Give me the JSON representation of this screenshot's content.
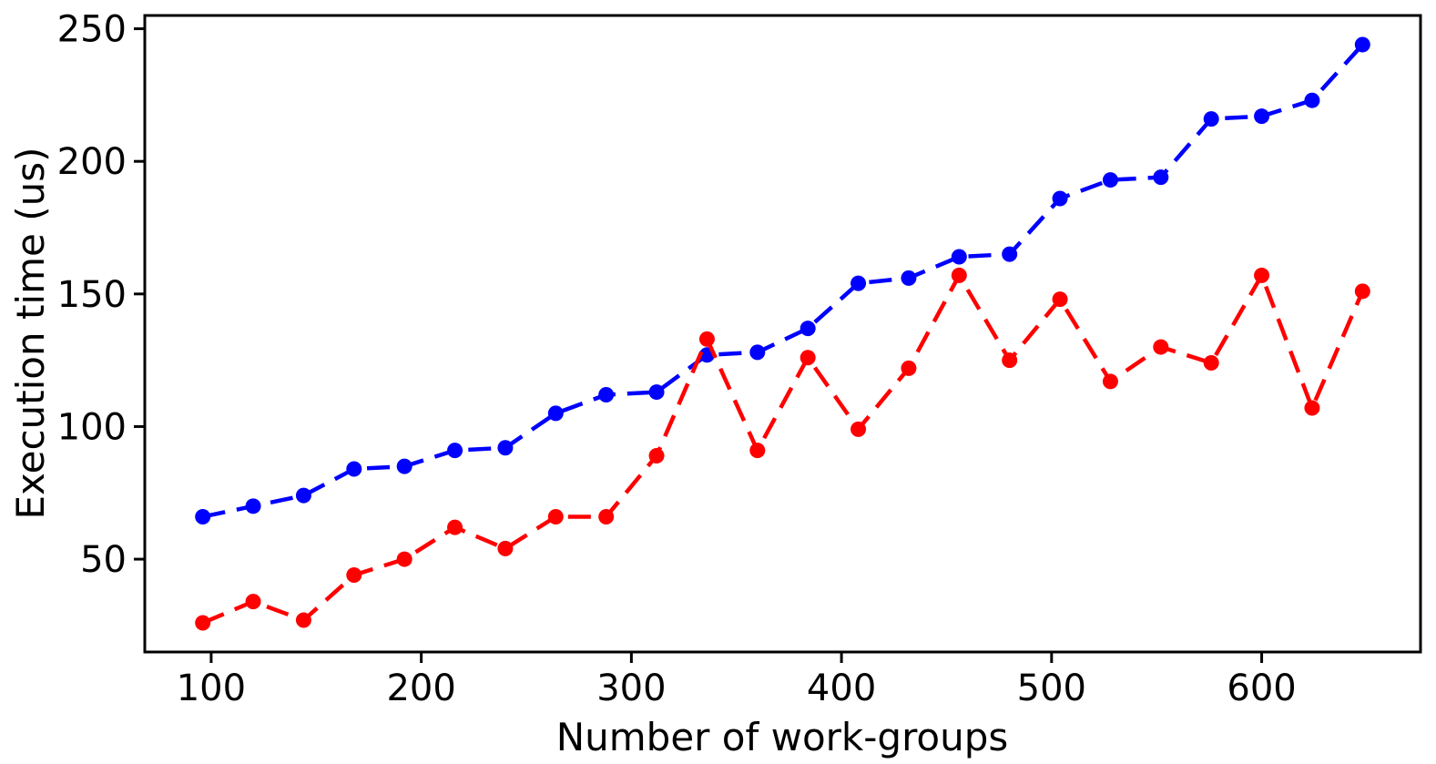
{
  "chart_data": {
    "type": "line",
    "title": "",
    "xlabel": "Number of work-groups",
    "ylabel": "Execution time (us)",
    "x": [
      96,
      120,
      144,
      168,
      192,
      216,
      240,
      264,
      288,
      312,
      336,
      360,
      384,
      408,
      432,
      456,
      480,
      504,
      528,
      552,
      576,
      600,
      624,
      648
    ],
    "series": [
      {
        "name": "blue-series",
        "color": "#0000ff",
        "linestyle": "dashed",
        "marker": "circle",
        "values": [
          66,
          70,
          74,
          84,
          85,
          91,
          92,
          105,
          112,
          113,
          127,
          128,
          137,
          154,
          156,
          164,
          165,
          186,
          193,
          194,
          216,
          217,
          223,
          244
        ]
      },
      {
        "name": "red-series",
        "color": "#ff0000",
        "linestyle": "dashed",
        "marker": "circle",
        "values": [
          26,
          34,
          27,
          44,
          50,
          62,
          54,
          66,
          66,
          89,
          133,
          91,
          126,
          99,
          122,
          157,
          125,
          148,
          117,
          130,
          124,
          157,
          107,
          151
        ]
      }
    ],
    "xlim": [
      68.4,
      675.6
    ],
    "ylim": [
      15,
      255
    ],
    "xticks": [
      100,
      200,
      300,
      400,
      500,
      600
    ],
    "yticks": [
      50,
      100,
      150,
      200,
      250
    ],
    "grid": false,
    "legend": "none",
    "frame_color": "#000000",
    "background_color": "#ffffff"
  }
}
